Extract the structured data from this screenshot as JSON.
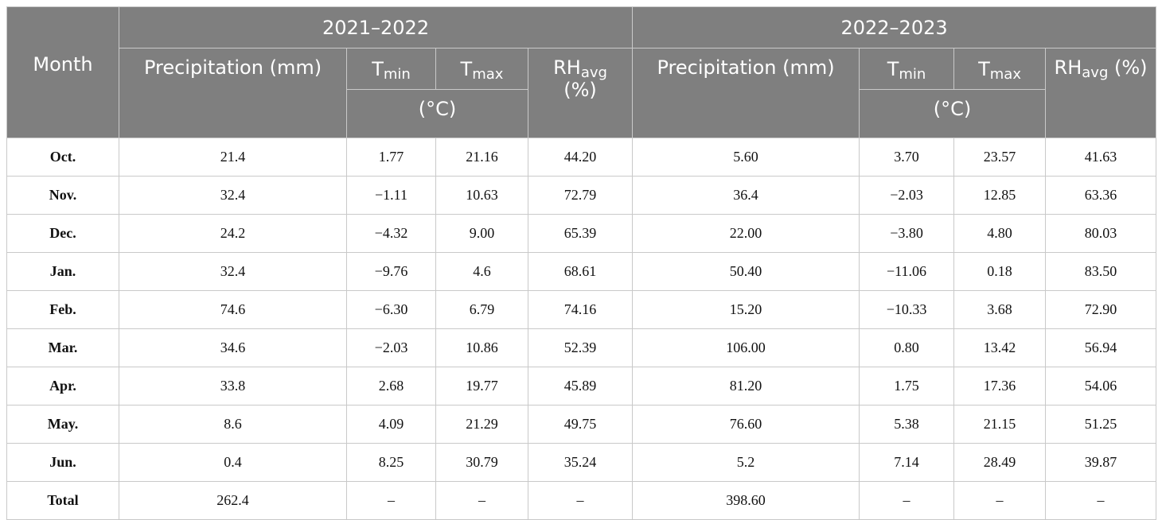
{
  "header": {
    "month": "Month",
    "period_2021": "2021–2022",
    "period_2022": "2022–2023",
    "precip_2021": "Precipitation (mm)",
    "precip_2022": "Precipitation (mm)",
    "t_base": "T",
    "tmin_sub": "min",
    "tmax_sub": "max",
    "rh_base": "RH",
    "rh_sub": "avg",
    "rh_unit_2021": "(%)",
    "rh_unit_2022": " (%)",
    "celsius": "(°C)"
  },
  "rows": [
    {
      "month": "Oct.",
      "p1": "21.4",
      "tmin1": "1.77",
      "tmax1": "21.16",
      "rh1": "44.20",
      "p2": "5.60",
      "tmin2": "3.70",
      "tmax2": "23.57",
      "rh2": "41.63"
    },
    {
      "month": "Nov.",
      "p1": "32.4",
      "tmin1": "−1.11",
      "tmax1": "10.63",
      "rh1": "72.79",
      "p2": "36.4",
      "tmin2": "−2.03",
      "tmax2": "12.85",
      "rh2": "63.36"
    },
    {
      "month": "Dec.",
      "p1": "24.2",
      "tmin1": "−4.32",
      "tmax1": "9.00",
      "rh1": "65.39",
      "p2": "22.00",
      "tmin2": "−3.80",
      "tmax2": "4.80",
      "rh2": "80.03"
    },
    {
      "month": "Jan.",
      "p1": "32.4",
      "tmin1": "−9.76",
      "tmax1": "4.6",
      "rh1": "68.61",
      "p2": "50.40",
      "tmin2": "−11.06",
      "tmax2": "0.18",
      "rh2": "83.50"
    },
    {
      "month": "Feb.",
      "p1": "74.6",
      "tmin1": "−6.30",
      "tmax1": "6.79",
      "rh1": "74.16",
      "p2": "15.20",
      "tmin2": "−10.33",
      "tmax2": "3.68",
      "rh2": "72.90"
    },
    {
      "month": "Mar.",
      "p1": "34.6",
      "tmin1": "−2.03",
      "tmax1": "10.86",
      "rh1": "52.39",
      "p2": "106.00",
      "tmin2": "0.80",
      "tmax2": "13.42",
      "rh2": "56.94"
    },
    {
      "month": "Apr.",
      "p1": "33.8",
      "tmin1": "2.68",
      "tmax1": "19.77",
      "rh1": "45.89",
      "p2": "81.20",
      "tmin2": "1.75",
      "tmax2": "17.36",
      "rh2": "54.06"
    },
    {
      "month": "May.",
      "p1": "8.6",
      "tmin1": "4.09",
      "tmax1": "21.29",
      "rh1": "49.75",
      "p2": "76.60",
      "tmin2": "5.38",
      "tmax2": "21.15",
      "rh2": "51.25"
    },
    {
      "month": "Jun.",
      "p1": "0.4",
      "tmin1": "8.25",
      "tmax1": "30.79",
      "rh1": "35.24",
      "p2": "5.2",
      "tmin2": "7.14",
      "tmax2": "28.49",
      "rh2": "39.87"
    },
    {
      "month": "Total",
      "p1": "262.4",
      "tmin1": "–",
      "tmax1": "–",
      "rh1": "–",
      "p2": "398.60",
      "tmin2": "–",
      "tmax2": "–",
      "rh2": "–"
    }
  ]
}
